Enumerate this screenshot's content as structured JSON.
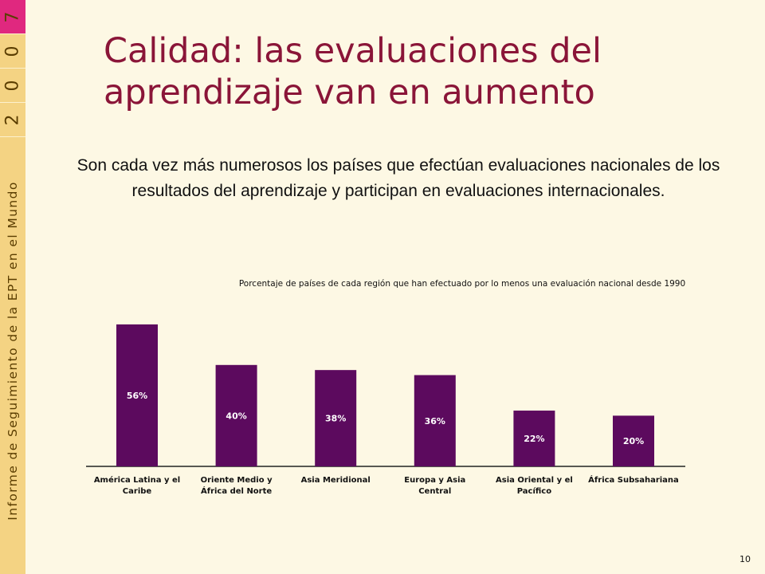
{
  "sidebar": {
    "year_digits": [
      "7",
      "0",
      "0",
      "2"
    ],
    "vertical_text": "Informe de Seguimiento de la EPT en el Mundo"
  },
  "slide": {
    "title": "Calidad: las evaluaciones del aprendizaje van en aumento",
    "subtitle": "Son cada vez más numerosos los países que efectúan evaluaciones nacionales de los resultados del aprendizaje y participan en evaluaciones internacionales.",
    "page_number": "10"
  },
  "colors": {
    "bar": "#5c0a5e",
    "title": "#8a1538",
    "sidebar": "#f4d383",
    "year_highlight": "#e0287f"
  },
  "chart_data": {
    "type": "bar",
    "title": "Porcentaje de países de cada región que han efectuado por lo menos una evaluación nacional desde 1990",
    "categories": [
      [
        "América  Latina y el",
        "Caribe"
      ],
      [
        "Oriente Medio y",
        "África del Norte"
      ],
      [
        "Asia Meridional"
      ],
      [
        "Europa y Asia",
        "Central"
      ],
      [
        "Asia Oriental y el",
        "Pacífico"
      ],
      [
        "África Subsahariana"
      ]
    ],
    "values": [
      56,
      40,
      38,
      36,
      22,
      20
    ],
    "data_labels": [
      "56%",
      "40%",
      "38%",
      "36%",
      "22%",
      "20%"
    ],
    "ylim": [
      0,
      60
    ],
    "grid": false,
    "xlabel": "",
    "ylabel": ""
  }
}
